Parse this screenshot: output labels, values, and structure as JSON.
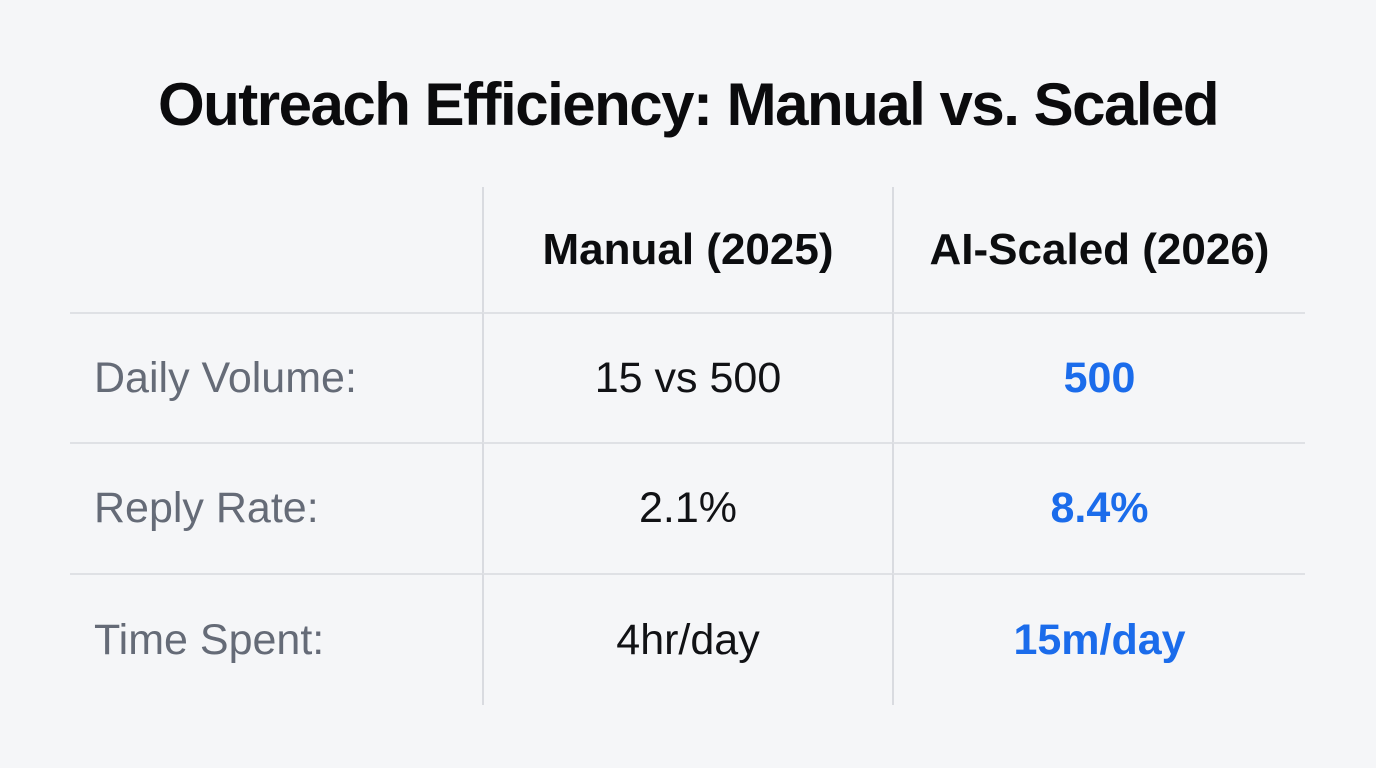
{
  "title": "Outreach Efficiency: Manual vs. Scaled",
  "table": {
    "column_headers": {
      "manual": "Manual (2025)",
      "scaled": "AI-Scaled (2026)"
    },
    "rows": [
      {
        "label": "Daily Volume:",
        "manual": "15 vs 500",
        "scaled": "500"
      },
      {
        "label": "Reply Rate:",
        "manual": "2.1%",
        "scaled": "8.4%"
      },
      {
        "label": "Time Spent:",
        "manual": "4hr/day",
        "scaled": "15m/day"
      }
    ]
  },
  "colors": {
    "background": "#f5f6f8",
    "text_black": "#0b0b0d",
    "label_gray": "#656b77",
    "accent_blue": "#1b6ceb",
    "grid_line": "#dfe1e5"
  },
  "chart_data": {
    "type": "table",
    "title": "Outreach Efficiency: Manual vs. Scaled",
    "columns": [
      "Manual (2025)",
      "AI-Scaled (2026)"
    ],
    "rows": [
      {
        "label": "Daily Volume:",
        "values": [
          "15 vs 500",
          "500"
        ]
      },
      {
        "label": "Reply Rate:",
        "values": [
          "2.1%",
          "8.4%"
        ]
      },
      {
        "label": "Time Spent:",
        "values": [
          "4hr/day",
          "15m/day"
        ]
      }
    ],
    "notes": "Second value column rendered in bold blue accent; row labels in gray; no outer table border; light gray row separators and column dividers."
  }
}
